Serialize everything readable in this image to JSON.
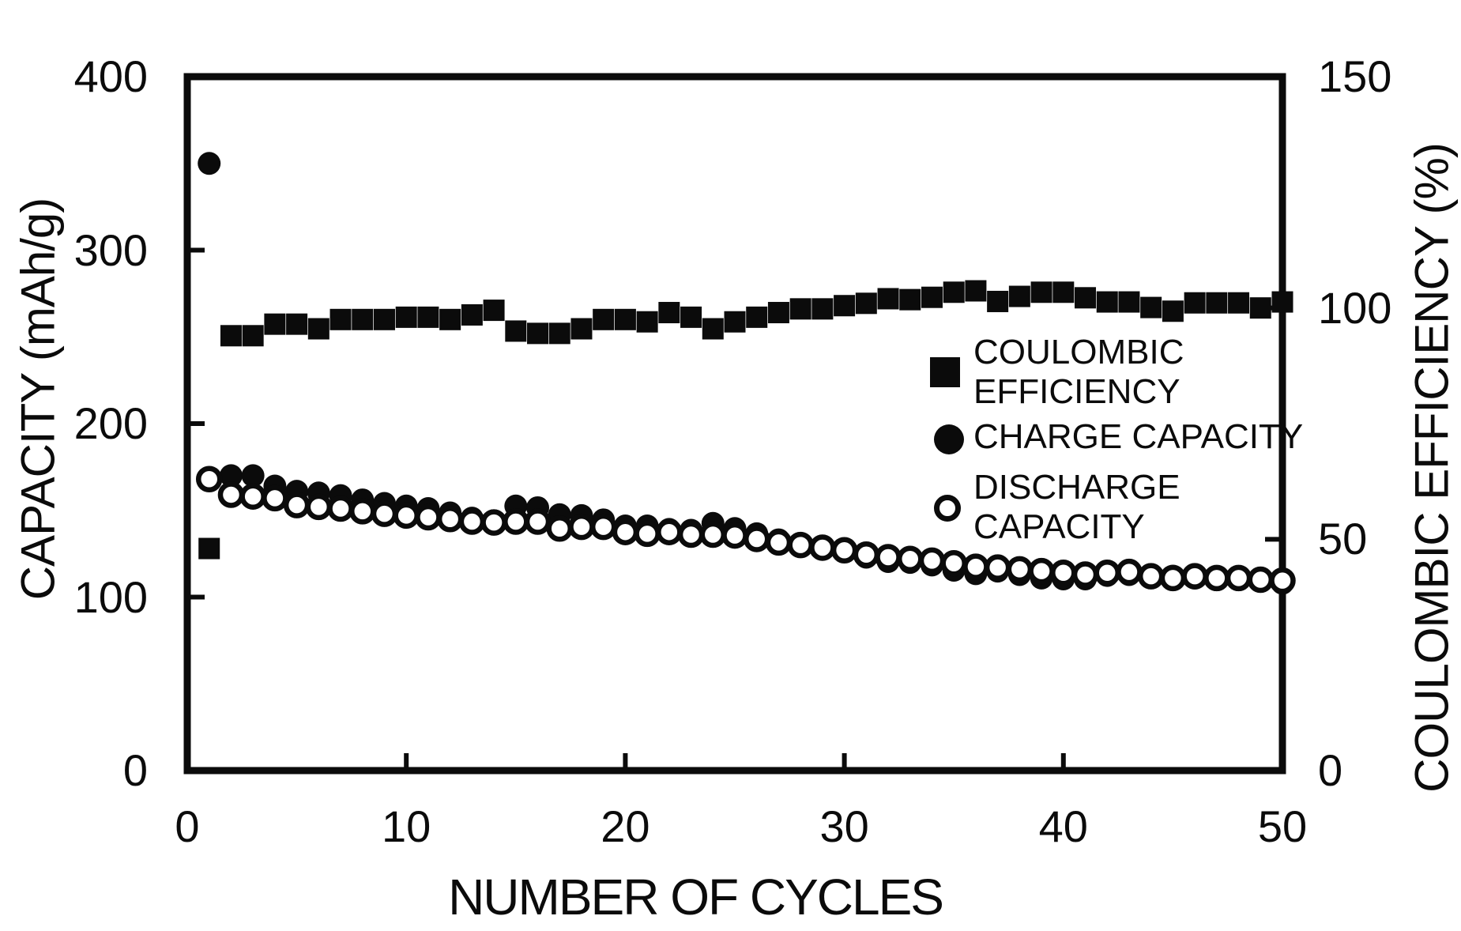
{
  "figure": {
    "background": "#ffffff",
    "ink_color": "#0b0b0b"
  },
  "axis_titles": {
    "x": "NUMBER OF CYCLES",
    "left": "CAPACITY (mAh/g)",
    "right": "COULOMBIC EFFICIENCY (%)"
  },
  "legend": {
    "items": [
      {
        "marker": "filled-square",
        "line1": "COULOMBIC",
        "line2": "EFFICIENCY"
      },
      {
        "marker": "filled-circle",
        "line1": "CHARGE CAPACITY",
        "line2": ""
      },
      {
        "marker": "open-circle",
        "line1": "DISCHARGE",
        "line2": "CAPACITY"
      }
    ]
  },
  "chart_data": {
    "type": "scatter",
    "title": "",
    "xlabel": "NUMBER OF CYCLES",
    "ylabel_left": "CAPACITY (mAh/g)",
    "ylabel_right": "COULOMBIC EFFICIENCY (%)",
    "grid": false,
    "legend_position": "right-middle",
    "axes": {
      "x": {
        "min": 0,
        "max": 50,
        "ticks": [
          0,
          10,
          20,
          30,
          40,
          50
        ]
      },
      "left": {
        "min": 0,
        "max": 400,
        "ticks": [
          0,
          100,
          200,
          300,
          400
        ]
      },
      "right": {
        "min": 0,
        "max": 150,
        "ticks": [
          0,
          50,
          100,
          150
        ]
      }
    },
    "x": [
      1,
      2,
      3,
      4,
      5,
      6,
      7,
      8,
      9,
      10,
      11,
      12,
      13,
      14,
      15,
      16,
      17,
      18,
      19,
      20,
      21,
      22,
      23,
      24,
      25,
      26,
      27,
      28,
      29,
      30,
      31,
      32,
      33,
      34,
      35,
      36,
      37,
      38,
      39,
      40,
      41,
      42,
      43,
      44,
      45,
      46,
      47,
      48,
      49,
      50
    ],
    "series": [
      {
        "name": "COULOMBIC EFFICIENCY",
        "marker": "filled-square",
        "axis": "right",
        "unit": "%",
        "values": [
          48,
          94,
          94,
          96.5,
          96.5,
          95.5,
          97.5,
          97.5,
          97.5,
          98,
          98,
          97.5,
          98.5,
          99.5,
          95,
          94.5,
          94.5,
          95.5,
          97.5,
          97.5,
          97,
          99,
          98,
          95.5,
          97,
          98,
          99,
          99.8,
          99.8,
          100.5,
          101,
          102,
          101.8,
          102.3,
          103.4,
          103.7,
          101.4,
          102.5,
          103.4,
          103.4,
          102.2,
          101.3,
          101.3,
          100.1,
          99.3,
          101.1,
          101.1,
          101.1,
          100,
          101.3
        ]
      },
      {
        "name": "CHARGE CAPACITY",
        "marker": "filled-circle",
        "axis": "left",
        "unit": "mAh/g",
        "values": [
          350,
          170,
          170,
          164,
          161,
          160,
          158.5,
          156,
          154,
          152.5,
          151,
          148.5,
          145.5,
          144,
          152.5,
          151.5,
          147.5,
          147,
          144.5,
          141,
          141,
          139,
          138.5,
          142.5,
          139.5,
          136.5,
          133,
          130.5,
          129,
          126.5,
          123,
          120.5,
          120,
          118.5,
          115.5,
          113.5,
          115,
          113,
          111,
          110.5,
          110.5,
          112.5,
          113,
          112,
          112,
          111,
          110,
          110,
          110,
          108
        ]
      },
      {
        "name": "DISCHARGE CAPACITY",
        "marker": "open-circle",
        "axis": "left",
        "unit": "mAh/g",
        "values": [
          168,
          159,
          158,
          157,
          153,
          152,
          151,
          149.5,
          148,
          147,
          146,
          145,
          143.5,
          143,
          143.5,
          143.5,
          139.5,
          140.5,
          140.5,
          137.5,
          136.5,
          137.5,
          136,
          136,
          135.5,
          133.5,
          131.5,
          130,
          128.5,
          127,
          124.5,
          123,
          122,
          121,
          119.5,
          117.5,
          117,
          116,
          115,
          114,
          113,
          114,
          114.5,
          112,
          111,
          112,
          111,
          111,
          110,
          109.5
        ]
      }
    ]
  }
}
